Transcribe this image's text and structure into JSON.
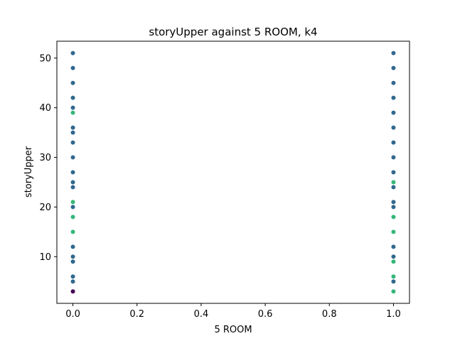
{
  "chart_data": {
    "type": "scatter",
    "title": "storyUpper against 5 ROOM, k4",
    "xlabel": "5 ROOM",
    "ylabel": "storyUpper",
    "xlim": [
      -0.05,
      1.05
    ],
    "ylim": [
      0.6,
      53.4
    ],
    "xticks": [
      0.0,
      0.2,
      0.4,
      0.6,
      0.8,
      1.0
    ],
    "xtick_labels": [
      "0.0",
      "0.2",
      "0.4",
      "0.6",
      "0.8",
      "1.0"
    ],
    "yticks": [
      10,
      20,
      30,
      40,
      50
    ],
    "ytick_labels": [
      "10",
      "20",
      "30",
      "40",
      "50"
    ],
    "grid": false,
    "colors": {
      "blue": "#31688e",
      "green": "#35b779",
      "purple": "#440154"
    },
    "points": [
      {
        "x": 0,
        "y": 51,
        "c": "blue"
      },
      {
        "x": 0,
        "y": 48,
        "c": "blue"
      },
      {
        "x": 0,
        "y": 45,
        "c": "blue"
      },
      {
        "x": 0,
        "y": 42,
        "c": "blue"
      },
      {
        "x": 0,
        "y": 40,
        "c": "blue"
      },
      {
        "x": 0,
        "y": 39,
        "c": "green"
      },
      {
        "x": 0,
        "y": 36,
        "c": "blue"
      },
      {
        "x": 0,
        "y": 35,
        "c": "blue"
      },
      {
        "x": 0,
        "y": 33,
        "c": "blue"
      },
      {
        "x": 0,
        "y": 30,
        "c": "blue"
      },
      {
        "x": 0,
        "y": 27,
        "c": "blue"
      },
      {
        "x": 0,
        "y": 25,
        "c": "blue"
      },
      {
        "x": 0,
        "y": 24,
        "c": "blue"
      },
      {
        "x": 0,
        "y": 21,
        "c": "green"
      },
      {
        "x": 0,
        "y": 20,
        "c": "blue"
      },
      {
        "x": 0,
        "y": 18,
        "c": "green"
      },
      {
        "x": 0,
        "y": 15,
        "c": "green"
      },
      {
        "x": 0,
        "y": 12,
        "c": "blue"
      },
      {
        "x": 0,
        "y": 10,
        "c": "blue"
      },
      {
        "x": 0,
        "y": 9,
        "c": "blue"
      },
      {
        "x": 0,
        "y": 6,
        "c": "blue"
      },
      {
        "x": 0,
        "y": 5,
        "c": "blue"
      },
      {
        "x": 0,
        "y": 3,
        "c": "purple"
      },
      {
        "x": 1,
        "y": 51,
        "c": "blue"
      },
      {
        "x": 1,
        "y": 48,
        "c": "blue"
      },
      {
        "x": 1,
        "y": 45,
        "c": "blue"
      },
      {
        "x": 1,
        "y": 42,
        "c": "blue"
      },
      {
        "x": 1,
        "y": 39,
        "c": "blue"
      },
      {
        "x": 1,
        "y": 36,
        "c": "blue"
      },
      {
        "x": 1,
        "y": 33,
        "c": "blue"
      },
      {
        "x": 1,
        "y": 30,
        "c": "blue"
      },
      {
        "x": 1,
        "y": 27,
        "c": "blue"
      },
      {
        "x": 1,
        "y": 25,
        "c": "green"
      },
      {
        "x": 1,
        "y": 24,
        "c": "blue"
      },
      {
        "x": 1,
        "y": 21,
        "c": "blue"
      },
      {
        "x": 1,
        "y": 20,
        "c": "blue"
      },
      {
        "x": 1,
        "y": 18,
        "c": "green"
      },
      {
        "x": 1,
        "y": 15,
        "c": "green"
      },
      {
        "x": 1,
        "y": 12,
        "c": "blue"
      },
      {
        "x": 1,
        "y": 10,
        "c": "blue"
      },
      {
        "x": 1,
        "y": 9,
        "c": "green"
      },
      {
        "x": 1,
        "y": 6,
        "c": "green"
      },
      {
        "x": 1,
        "y": 5,
        "c": "blue"
      },
      {
        "x": 1,
        "y": 3,
        "c": "green"
      }
    ]
  }
}
